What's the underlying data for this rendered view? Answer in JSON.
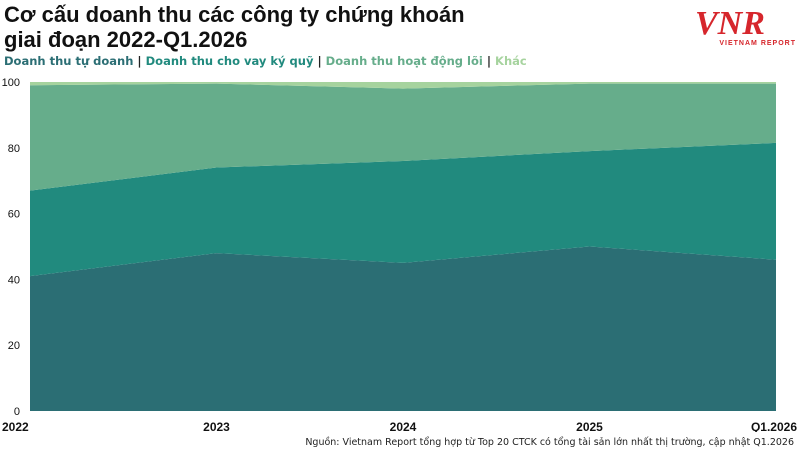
{
  "title_line1": "Cơ cấu doanh thu các công ty chứng khoán",
  "title_line2": "giai đoạn 2022-Q1.2026",
  "legend": {
    "s1": "Doanh thu tự doanh",
    "s2": "Doanh thu cho vay ký quỹ",
    "s3": "Doanh thu hoạt động lõi",
    "s4": "Khác",
    "separator": "|"
  },
  "logo": {
    "letters": "VNR",
    "caption": "VIETNAM REPORT",
    "color": "#d6262c"
  },
  "source": "Nguồn: Vietnam Report tổng hợp từ Top 20 CTCK có tổng tài sản lớn nhất thị trường, cập nhật Q1.2026",
  "chart_data": {
    "type": "area",
    "stacked": true,
    "categories": [
      "2022",
      "2023",
      "2024",
      "2025",
      "Q1.2026"
    ],
    "ylim": [
      0,
      100
    ],
    "yticks": [
      0,
      20,
      40,
      60,
      80,
      100
    ],
    "series": [
      {
        "name": "Doanh thu tự doanh",
        "color": "#2b6e74",
        "values": [
          41,
          48,
          45,
          50,
          46
        ]
      },
      {
        "name": "Doanh thu cho vay ký quỹ",
        "color": "#218a7e",
        "values": [
          26,
          26,
          31,
          29,
          35.5
        ]
      },
      {
        "name": "Doanh thu hoạt động lõi",
        "color": "#66ad8b",
        "values": [
          32,
          25.5,
          22,
          20.5,
          18
        ]
      },
      {
        "name": "Khác",
        "color": "#a6d39e",
        "values": [
          1,
          0.5,
          2,
          0.5,
          0.5
        ]
      }
    ]
  }
}
